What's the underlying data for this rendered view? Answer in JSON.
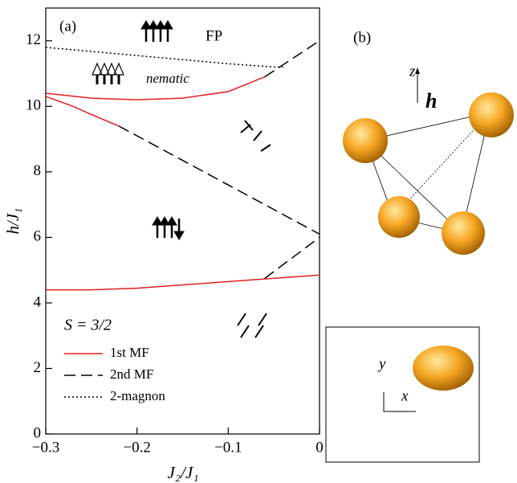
{
  "chart_data": {
    "type": "line",
    "panel_a_label": "(a)",
    "panel_b_label": "(b)",
    "xlabel": "J₂/J₁",
    "ylabel": "h/J₁",
    "xlim": [
      -0.3,
      0
    ],
    "ylim": [
      0,
      13
    ],
    "xticks": [
      {
        "value": -0.3,
        "label": "−0.3"
      },
      {
        "value": -0.2,
        "label": "−0.2"
      },
      {
        "value": -0.1,
        "label": "−0.1"
      },
      0
    ],
    "yticks": [
      0,
      2,
      4,
      6,
      8,
      10,
      12
    ],
    "series": [
      {
        "name": "1st MF",
        "color": "#e02020",
        "dash": "solid",
        "x": [
          -0.3,
          -0.25,
          -0.2,
          -0.15,
          -0.1,
          -0.06,
          null,
          -0.3,
          -0.27,
          -0.25,
          -0.22,
          null,
          -0.3,
          -0.25,
          -0.2,
          -0.1,
          0
        ],
        "values": [
          10.4,
          10.25,
          10.2,
          10.25,
          10.45,
          10.9,
          null,
          10.3,
          10.0,
          9.75,
          9.4,
          null,
          4.4,
          4.4,
          4.45,
          4.65,
          4.85
        ]
      },
      {
        "name": "2nd MF",
        "color": "#000000",
        "dash": "dashed",
        "x": [
          -0.22,
          0,
          null,
          -0.06,
          0,
          null,
          -0.06,
          0
        ],
        "values": [
          9.4,
          6.1,
          null,
          10.9,
          12,
          null,
          4.75,
          6.0
        ]
      },
      {
        "name": "2-magnon",
        "color": "#000000",
        "dash": "dotted",
        "x": [
          -0.3,
          -0.2,
          -0.1,
          -0.05,
          -0.04
        ],
        "values": [
          11.8,
          11.55,
          11.3,
          11.2,
          11.2
        ]
      }
    ],
    "annotations": {
      "fp": "FP",
      "nematic": "nematic",
      "spin": "S = 3/2",
      "z_axis": "z",
      "h_field": "h",
      "x_axis": "x",
      "y_axis": "y"
    }
  }
}
